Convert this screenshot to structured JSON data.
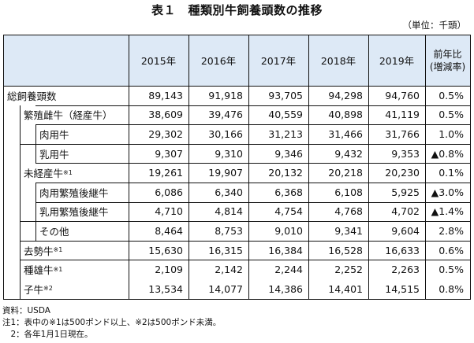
{
  "title": "表１　種類別牛飼養頭数の推移",
  "unit": "（単位：千頭）",
  "header": {
    "years": [
      "2015年",
      "2016年",
      "2017年",
      "2018年",
      "2019年"
    ],
    "change_line1": "前年比",
    "change_line2": "(増減率)"
  },
  "rows": [
    {
      "label": "総飼養頭数",
      "sup": "",
      "values": [
        "89,143",
        "91,918",
        "93,705",
        "94,298",
        "94,760"
      ],
      "change": "0.5%"
    },
    {
      "label": "繁殖雌牛（経産牛）",
      "sup": "",
      "values": [
        "38,609",
        "39,476",
        "40,559",
        "40,898",
        "41,119"
      ],
      "change": "0.5%"
    },
    {
      "label": "肉用牛",
      "sup": "",
      "values": [
        "29,302",
        "30,166",
        "31,213",
        "31,466",
        "31,766"
      ],
      "change": "1.0%"
    },
    {
      "label": "乳用牛",
      "sup": "",
      "values": [
        "9,307",
        "9,310",
        "9,346",
        "9,432",
        "9,353"
      ],
      "change": "▲0.8%"
    },
    {
      "label": "未経産牛",
      "sup": "※1",
      "values": [
        "19,261",
        "19,907",
        "20,132",
        "20,218",
        "20,230"
      ],
      "change": "0.1%"
    },
    {
      "label": "肉用繁殖後継牛",
      "sup": "",
      "values": [
        "6,086",
        "6,340",
        "6,368",
        "6,108",
        "5,925"
      ],
      "change": "▲3.0%"
    },
    {
      "label": "乳用繁殖後継牛",
      "sup": "",
      "values": [
        "4,710",
        "4,814",
        "4,754",
        "4,768",
        "4,702"
      ],
      "change": "▲1.4%"
    },
    {
      "label": "その他",
      "sup": "",
      "values": [
        "8,464",
        "8,753",
        "9,010",
        "9,341",
        "9,604"
      ],
      "change": "2.8%"
    },
    {
      "label": "去勢牛",
      "sup": "※1",
      "values": [
        "15,630",
        "16,315",
        "16,384",
        "16,528",
        "16,633"
      ],
      "change": "0.6%"
    },
    {
      "label": "種雄牛",
      "sup": "※1",
      "values": [
        "2,109",
        "2,142",
        "2,244",
        "2,252",
        "2,263"
      ],
      "change": "0.5%"
    },
    {
      "label": "子牛",
      "sup": "※2",
      "values": [
        "13,534",
        "14,077",
        "14,386",
        "14,401",
        "14,515"
      ],
      "change": "0.8%"
    }
  ],
  "notes": [
    "資料：USDA",
    "注1：表中の※1は500ポンド以上、※2は500ポンド未満。",
    "　2：各年1月1日現在。"
  ]
}
